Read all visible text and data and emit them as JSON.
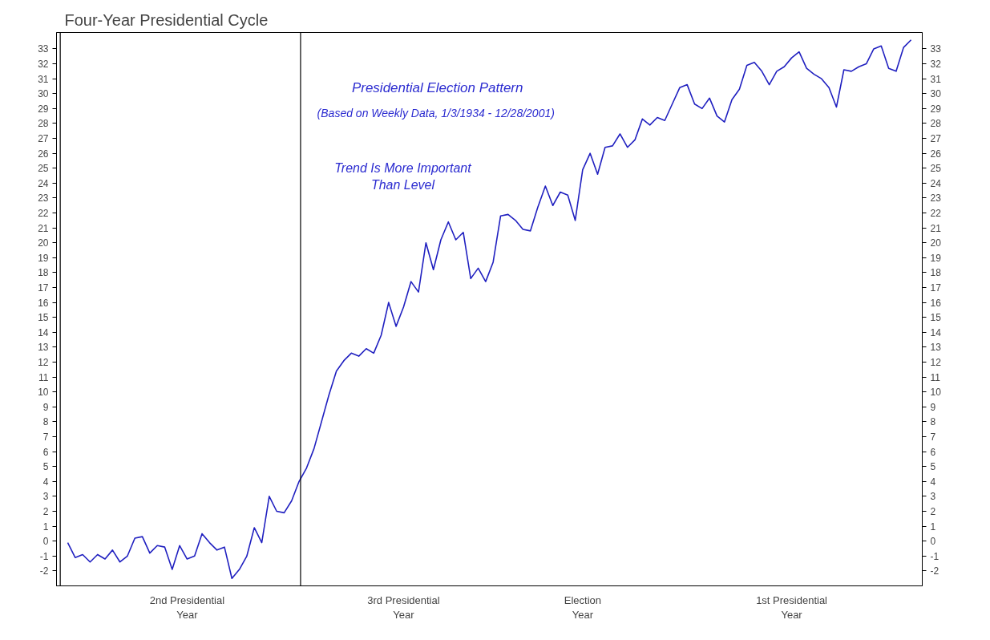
{
  "chart_data": {
    "type": "line",
    "title": "Four-Year Presidential Cycle",
    "annotations": [
      "Presidential Election Pattern",
      "(Based on Weekly Data, 1/3/1934  - 12/28/2001)",
      "Trend Is More Important\nThan Level"
    ],
    "categories": [
      null,
      null,
      null,
      null,
      null,
      null,
      null,
      null,
      null,
      null,
      null,
      null,
      null,
      null,
      null,
      null,
      "2nd Presidential\nYear",
      null,
      null,
      null,
      null,
      null,
      null,
      null,
      null,
      null,
      null,
      null,
      null,
      null,
      null,
      null,
      null,
      null,
      null,
      null,
      null,
      null,
      null,
      null,
      null,
      null,
      null,
      null,
      null,
      "3rd Presidential\nYear",
      null,
      null,
      null,
      null,
      null,
      null,
      null,
      null,
      null,
      null,
      null,
      null,
      null,
      null,
      null,
      null,
      null,
      null,
      null,
      null,
      null,
      null,
      null,
      "Election\nYear",
      null,
      null,
      null,
      null,
      null,
      null,
      null,
      null,
      null,
      null,
      null,
      null,
      null,
      null,
      null,
      null,
      null,
      null,
      null,
      null,
      null,
      null,
      null,
      null,
      null,
      null,
      null,
      "1st Presidential\nYear",
      null,
      null,
      null,
      null,
      null,
      null,
      null,
      null,
      null,
      null,
      null,
      null,
      null,
      null,
      null,
      null
    ],
    "series": [
      {
        "color": "#2020c0",
        "values": [
          -0.1,
          -1.1,
          -0.9,
          -1.4,
          -0.9,
          -1.2,
          -0.6,
          -1.4,
          -1.0,
          0.2,
          0.3,
          -0.8,
          -0.3,
          -0.4,
          -1.9,
          -0.3,
          -1.2,
          -1.0,
          0.5,
          -0.1,
          -0.6,
          -0.4,
          -2.5,
          -1.9,
          -1.0,
          0.9,
          -0.1,
          3.0,
          2.0,
          1.9,
          2.7,
          4.0,
          4.9,
          6.2,
          8.0,
          9.8,
          11.4,
          12.1,
          12.6,
          12.4,
          12.9,
          12.6,
          13.8,
          16.0,
          14.4,
          15.7,
          17.4,
          16.7,
          20.0,
          18.2,
          20.2,
          21.4,
          20.2,
          20.7,
          17.6,
          18.3,
          17.4,
          18.7,
          21.8,
          21.9,
          21.5,
          20.9,
          20.8,
          22.4,
          23.8,
          22.5,
          23.4,
          23.2,
          21.5,
          24.9,
          26.0,
          24.6,
          26.4,
          26.5,
          27.3,
          26.4,
          26.9,
          28.3,
          27.9,
          28.4,
          28.2,
          29.3,
          30.4,
          30.6,
          29.3,
          29.0,
          29.7,
          28.5,
          28.1,
          29.6,
          30.3,
          31.9,
          32.1,
          31.5,
          30.6,
          31.5,
          31.8,
          32.4,
          32.8,
          31.7,
          31.3,
          31.0,
          30.4,
          29.1,
          31.6,
          31.5,
          31.8,
          32.0,
          33.0,
          33.2,
          31.7,
          31.5,
          33.1,
          33.6
        ]
      }
    ],
    "ylim": [
      -3,
      34.1
    ],
    "yticks": [
      -2,
      -1,
      0,
      1,
      2,
      3,
      4,
      5,
      6,
      7,
      8,
      9,
      10,
      11,
      12,
      13,
      14,
      15,
      16,
      17,
      18,
      19,
      20,
      21,
      22,
      23,
      24,
      25,
      26,
      27,
      28,
      29,
      30,
      31,
      32,
      33
    ],
    "y2lim": [
      -3,
      34.1
    ],
    "y2ticks": [
      -2,
      -1,
      0,
      1,
      2,
      3,
      4,
      5,
      6,
      7,
      8,
      9,
      10,
      11,
      12,
      13,
      14,
      15,
      16,
      17,
      18,
      19,
      20,
      21,
      22,
      23,
      24,
      25,
      26,
      27,
      28,
      29,
      30,
      31,
      32,
      33
    ],
    "marker": "none",
    "line_style": "solid"
  }
}
